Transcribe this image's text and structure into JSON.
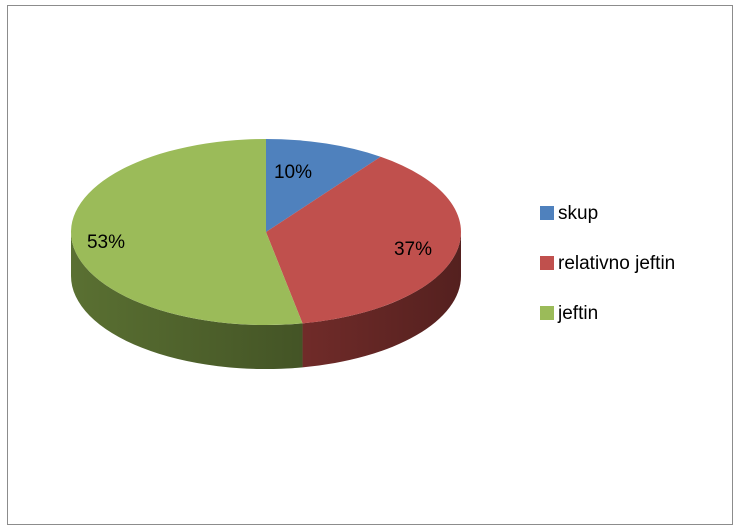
{
  "chart_data": {
    "type": "pie",
    "style": "3d",
    "categories": [
      "skup",
      "relativno jeftin",
      "jeftin"
    ],
    "values": [
      10,
      37,
      53
    ],
    "labels": [
      "10%",
      "37%",
      "53%"
    ],
    "colors": [
      "#4f81bd",
      "#c0504d",
      "#9bbb59"
    ],
    "side_colors": [
      "#2f4f78",
      "#702b29",
      "#5a7032"
    ],
    "legend_position": "right",
    "title": ""
  }
}
